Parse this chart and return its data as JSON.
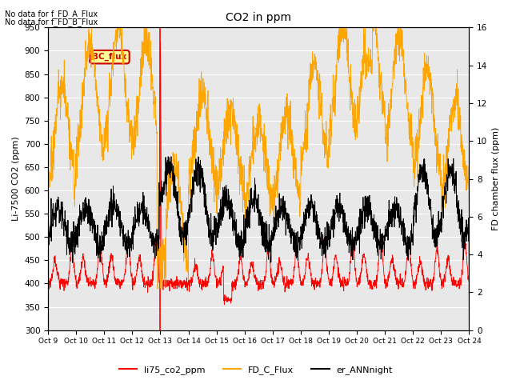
{
  "title": "CO2 in ppm",
  "ylabel_left": "Li-7500 CO2 (ppm)",
  "ylabel_right": "FD chamber flux (ppm)",
  "ylim_left": [
    300,
    950
  ],
  "ylim_right": [
    0,
    16
  ],
  "yticks_left": [
    300,
    350,
    400,
    450,
    500,
    550,
    600,
    650,
    700,
    750,
    800,
    850,
    900,
    950
  ],
  "yticks_right": [
    0,
    2,
    4,
    6,
    8,
    10,
    12,
    14,
    16
  ],
  "xtick_labels": [
    "Oct 9",
    "Oct 10",
    "Oct 11",
    "Oct 12",
    "Oct 13",
    "Oct 14",
    "Oct 15",
    "Oct 16",
    "Oct 17",
    "Oct 18",
    "Oct 19",
    "Oct 20",
    "Oct 21",
    "Oct 22",
    "Oct 23",
    "Oct 24"
  ],
  "vline_x": 4.0,
  "vline_color": "#ff0000",
  "color_red": "#ff0000",
  "color_orange": "#ffa500",
  "color_black": "#000000",
  "legend_labels": [
    "li75_co2_ppm",
    "FD_C_Flux",
    "er_ANNnight"
  ],
  "text_annotations": [
    "No data for f_FD_A_Flux",
    "No data for f_FD_B_Flux"
  ],
  "box_label": "BC_flux",
  "box_color": "#ffff99",
  "box_edge_color": "#cc0000",
  "grid_color": "#ffffff",
  "fig_bg": "#ffffff",
  "plot_bg": "#e8e8e8"
}
